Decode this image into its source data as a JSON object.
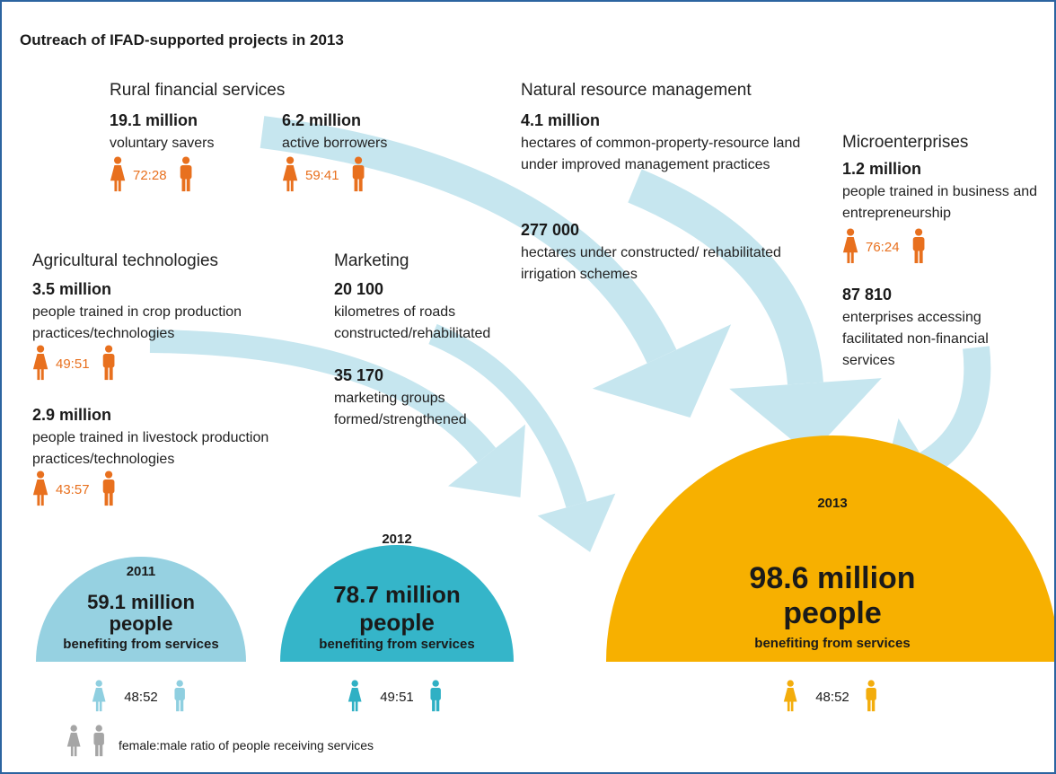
{
  "title": "Outreach of IFAD-supported projects in 2013",
  "sections": [
    {
      "heading": "Rural financial services",
      "items": [
        {
          "value": "19.1 million",
          "description": "voluntary savers",
          "ratio": "72:28"
        },
        {
          "value": "6.2 million",
          "description": "active borrowers",
          "ratio": "59:41"
        }
      ]
    },
    {
      "heading": "Natural resource management",
      "items": [
        {
          "value": "4.1 million",
          "description": "hectares of common-property-resource land under improved management practices"
        },
        {
          "value": "277 000",
          "description": "hectares under constructed/ rehabilitated irrigation schemes"
        }
      ]
    },
    {
      "heading": "Microenterprises",
      "items": [
        {
          "value": "1.2 million",
          "description": "people trained in business and entrepreneurship",
          "ratio": "76:24"
        },
        {
          "value": "87 810",
          "description": "enterprises accessing facilitated non-financial services"
        }
      ]
    },
    {
      "heading": "Agricultural technologies",
      "items": [
        {
          "value": "3.5 million",
          "description": "people trained in crop production practices/technologies",
          "ratio": "49:51"
        },
        {
          "value": "2.9 million",
          "description": "people trained in livestock production practices/technologies",
          "ratio": "43:57"
        }
      ]
    },
    {
      "heading": "Marketing",
      "items": [
        {
          "value": "20 100",
          "description": "kilometres of roads constructed/rehabilitated"
        },
        {
          "value": "35 170",
          "description": "marketing groups formed/strengthened"
        }
      ]
    }
  ],
  "years": [
    {
      "year": "2011",
      "value": "59.1 million",
      "unit": "people",
      "description": "benefiting from services",
      "ratio": "48:52"
    },
    {
      "year": "2012",
      "value": "78.7 million",
      "unit": "people",
      "description": "benefiting from services",
      "ratio": "49:51"
    },
    {
      "year": "2013",
      "value": "98.6 million",
      "unit": "people",
      "description": "benefiting from services",
      "ratio": "48:52"
    }
  ],
  "legend": "female:male ratio of people receiving services"
}
